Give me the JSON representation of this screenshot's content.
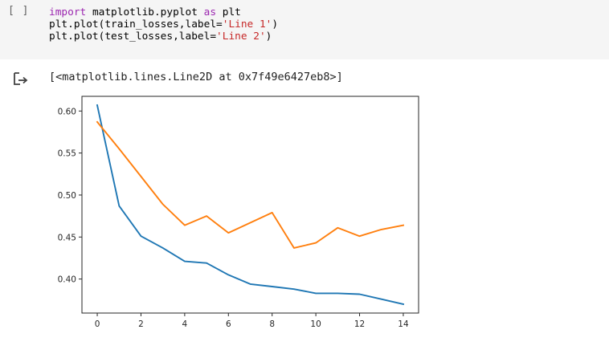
{
  "cell": {
    "run_indicator": "[ ]",
    "code_lines": [
      [
        {
          "t": "import",
          "c": "kw"
        },
        {
          "t": " matplotlib.pyplot ",
          "c": ""
        },
        {
          "t": "as",
          "c": "kw"
        },
        {
          "t": " plt",
          "c": ""
        }
      ],
      [
        {
          "t": "plt.plot(train_losses,label=",
          "c": ""
        },
        {
          "t": "'Line 1'",
          "c": "str"
        },
        {
          "t": ")",
          "c": ""
        }
      ],
      [
        {
          "t": "plt.plot(test_losses,label=",
          "c": ""
        },
        {
          "t": "'Line 2'",
          "c": "str"
        },
        {
          "t": ")",
          "c": ""
        }
      ]
    ]
  },
  "output": {
    "icon": "output-arrow-icon",
    "text": "[<matplotlib.lines.Line2D at 0x7f49e6427eb8>]"
  },
  "chart_data": {
    "type": "line",
    "title": "",
    "xlabel": "",
    "ylabel": "",
    "x": [
      0,
      1,
      2,
      3,
      4,
      5,
      6,
      7,
      8,
      9,
      10,
      11,
      12,
      13,
      14
    ],
    "xlim": [
      -0.7,
      14.7
    ],
    "ylim": [
      0.3595,
      0.6175
    ],
    "xticks": [
      0,
      2,
      4,
      6,
      8,
      10,
      12,
      14
    ],
    "xtick_labels": [
      "0",
      "2",
      "4",
      "6",
      "8",
      "10",
      "12",
      "14"
    ],
    "yticks": [
      0.4,
      0.45,
      0.5,
      0.55,
      0.6
    ],
    "ytick_labels": [
      "0.40",
      "0.45",
      "0.50",
      "0.55",
      "0.60"
    ],
    "grid": false,
    "series": [
      {
        "color": "#1f77b4",
        "values": [
          0.607,
          0.487,
          0.451,
          0.437,
          0.421,
          0.419,
          0.405,
          0.394,
          0.391,
          0.388,
          0.383,
          0.383,
          0.382,
          0.376,
          0.37
        ]
      },
      {
        "color": "#ff7f0e",
        "values": [
          0.587,
          0.555,
          0.522,
          0.489,
          0.464,
          0.475,
          0.455,
          0.467,
          0.479,
          0.437,
          0.443,
          0.461,
          0.451,
          0.459,
          0.464
        ]
      }
    ]
  }
}
